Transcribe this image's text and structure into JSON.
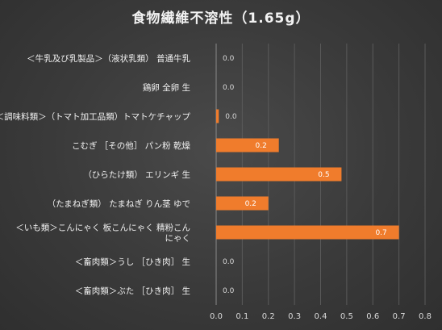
{
  "chart_data": {
    "type": "bar",
    "orientation": "horizontal",
    "title": "食物繊維不溶性（1.65g）",
    "xlabel": "",
    "ylabel": "",
    "xlim": [
      0,
      0.8
    ],
    "ticks": [
      "0.0",
      "0.1",
      "0.2",
      "0.3",
      "0.4",
      "0.5",
      "0.6",
      "0.7",
      "0.8"
    ],
    "grid": true,
    "legend": "none",
    "bar_color": "#f07c2c",
    "categories": [
      [
        "＜牛乳及び乳製品＞（液状乳類） 普通牛乳"
      ],
      [
        "鶏卵 全卵 生"
      ],
      [
        "＜調味料類＞（トマト加工品類）トマトケチャップ"
      ],
      [
        "こむぎ ［その他］ パン粉 乾燥"
      ],
      [
        "（ひらたけ類） エリンギ 生"
      ],
      [
        "（たまねぎ類） たまねぎ りん茎 ゆで"
      ],
      [
        "＜いも類＞こんにゃく 板こんにゃく 精粉こん",
        "にゃく"
      ],
      [
        "＜畜肉類＞うし ［ひき肉］ 生"
      ],
      [
        "＜畜肉類＞ぶた ［ひき肉］ 生"
      ]
    ],
    "values": [
      0.0,
      0.0,
      0.01,
      0.24,
      0.48,
      0.2,
      0.7,
      0.0,
      0.0
    ],
    "data_labels": [
      "0.0",
      "0.0",
      "0.0",
      "0.2",
      "0.5",
      "0.2",
      "0.7",
      "0.0",
      "0.0"
    ]
  }
}
